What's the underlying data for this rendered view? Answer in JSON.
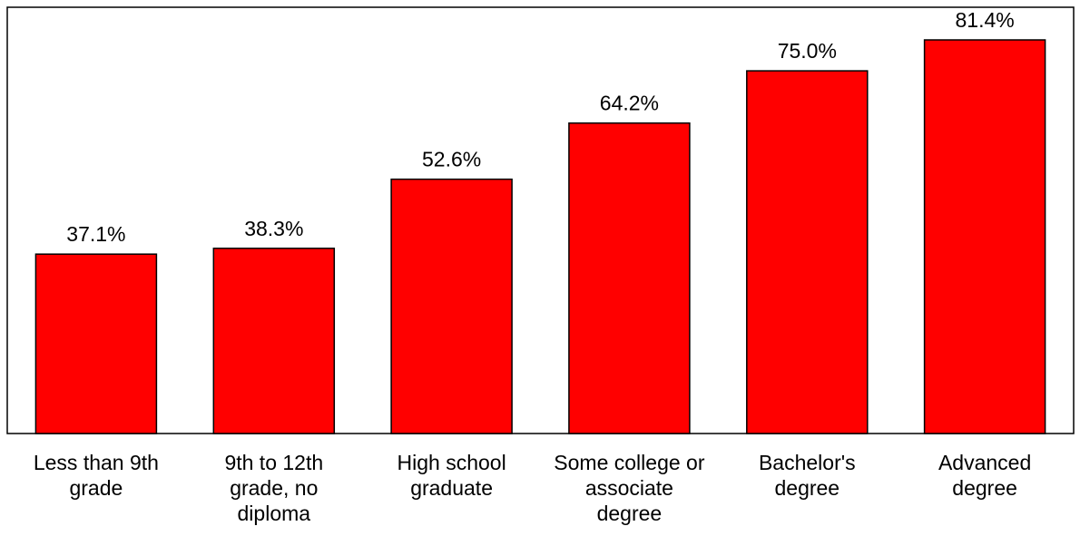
{
  "chart_data": {
    "type": "bar",
    "categories": [
      [
        "Less than 9th",
        "grade"
      ],
      [
        "9th to 12th",
        "grade, no",
        "diploma"
      ],
      [
        "High school",
        "graduate"
      ],
      [
        "Some college or",
        "associate",
        "degree"
      ],
      [
        "Bachelor's",
        "degree"
      ],
      [
        "Advanced",
        "degree"
      ]
    ],
    "values": [
      37.1,
      38.3,
      52.6,
      64.2,
      75.0,
      81.4
    ],
    "data_labels": [
      "37.1%",
      "38.3%",
      "52.6%",
      "64.2%",
      "75.0%",
      "81.4%"
    ],
    "ylim": [
      0,
      85
    ],
    "grid": false,
    "legend": "none",
    "bar_color": "#ff0000",
    "bar_outline": "#000000"
  }
}
